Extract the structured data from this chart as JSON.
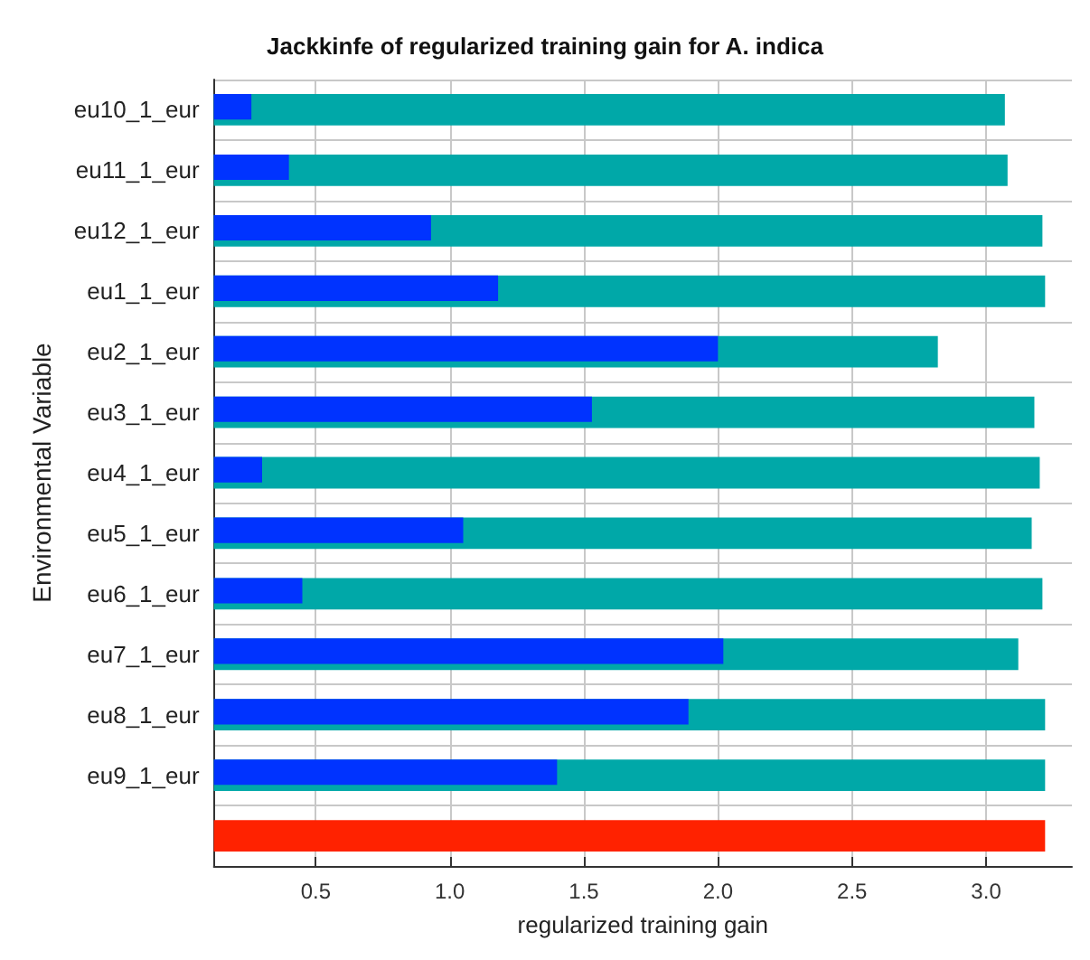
{
  "chart_data": {
    "type": "bar",
    "orientation": "horizontal",
    "title": "Jackkinfe of regularized training gain for A. indica",
    "xlabel": "regularized training gain",
    "ylabel": "Environmental Variable",
    "categories": [
      "eu10_1_eur",
      "eu11_1_eur",
      "eu12_1_eur",
      "eu1_1_eur",
      "eu2_1_eur",
      "eu3_1_eur",
      "eu4_1_eur",
      "eu5_1_eur",
      "eu6_1_eur",
      "eu7_1_eur",
      "eu8_1_eur",
      "eu9_1_eur",
      null
    ],
    "series": [
      {
        "color": "#00a8a8",
        "values": [
          3.07,
          3.08,
          3.21,
          3.22,
          2.82,
          3.18,
          3.2,
          3.17,
          3.21,
          3.12,
          3.22,
          3.22,
          null
        ]
      },
      {
        "color": "#0033ff",
        "values": [
          0.26,
          0.4,
          0.93,
          1.18,
          2.0,
          1.53,
          0.3,
          1.05,
          0.45,
          2.02,
          1.89,
          1.4,
          null
        ]
      },
      {
        "color": "#ff2200",
        "values": [
          null,
          null,
          null,
          null,
          null,
          null,
          null,
          null,
          null,
          null,
          null,
          null,
          3.22
        ]
      }
    ],
    "xlim": [
      0.12,
      3.32
    ],
    "xticks": [
      0.5,
      {
        "value": 1,
        "label": "1.0"
      },
      1.5,
      {
        "value": 2,
        "label": "2.0"
      },
      2.5,
      {
        "value": 3,
        "label": "3.0"
      }
    ],
    "grid": true
  }
}
